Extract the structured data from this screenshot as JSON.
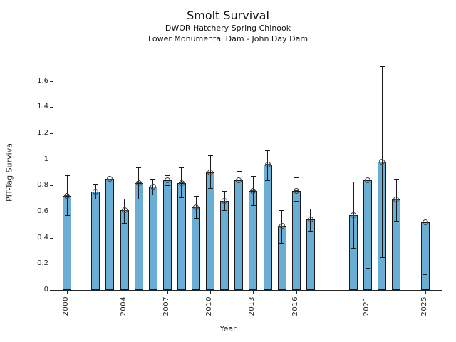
{
  "header": {
    "title": "Smolt Survival",
    "subtitle_line1": "DWOR Hatchery Spring Chinook",
    "subtitle_line2": "Lower Monumental Dam - John Day Dam"
  },
  "chart_data": {
    "type": "bar",
    "title": "Smolt Survival",
    "subtitle": [
      "DWOR Hatchery Spring Chinook",
      "Lower Monumental Dam - John Day Dam"
    ],
    "xlabel": "Year",
    "ylabel": "PIT-Tag Survival",
    "legend": "none",
    "grid": false,
    "bar_color": "#6AAED6",
    "bar_edge_color": "#1a1a1a",
    "error_bar_color": "#1a1a1a",
    "marker": "circled-plus",
    "xlim": [
      1999.05,
      2026.16
    ],
    "ylim": [
      0,
      1.81
    ],
    "yticks": [
      0,
      0.2,
      0.4,
      0.6,
      0.8,
      1,
      1.2,
      1.4,
      1.6
    ],
    "ytick_labels": [
      "0",
      "0.2",
      "0.4",
      "0.6",
      "0.8",
      "1",
      "1.2",
      "1.4",
      "1.6"
    ],
    "xticks": [
      2000,
      2004,
      2007,
      2010,
      2013,
      2016,
      2021,
      2025
    ],
    "xtick_labels": [
      "2000",
      "2004",
      "2007",
      "2010",
      "2013",
      "2016",
      "2021",
      "2025"
    ],
    "points": [
      {
        "year": 2000,
        "value": 0.72,
        "err_low": 0.57,
        "err_high": 0.88
      },
      {
        "year": 2002,
        "value": 0.75,
        "err_low": 0.7,
        "err_high": 0.81
      },
      {
        "year": 2003,
        "value": 0.85,
        "err_low": 0.79,
        "err_high": 0.92
      },
      {
        "year": 2004,
        "value": 0.61,
        "err_low": 0.51,
        "err_high": 0.7
      },
      {
        "year": 2005,
        "value": 0.82,
        "err_low": 0.7,
        "err_high": 0.94
      },
      {
        "year": 2006,
        "value": 0.79,
        "err_low": 0.73,
        "err_high": 0.85
      },
      {
        "year": 2007,
        "value": 0.84,
        "err_low": 0.8,
        "err_high": 0.88
      },
      {
        "year": 2008,
        "value": 0.82,
        "err_low": 0.71,
        "err_high": 0.94
      },
      {
        "year": 2009,
        "value": 0.63,
        "err_low": 0.55,
        "err_high": 0.72
      },
      {
        "year": 2010,
        "value": 0.9,
        "err_low": 0.78,
        "err_high": 1.03
      },
      {
        "year": 2011,
        "value": 0.68,
        "err_low": 0.61,
        "err_high": 0.76
      },
      {
        "year": 2012,
        "value": 0.84,
        "err_low": 0.77,
        "err_high": 0.91
      },
      {
        "year": 2013,
        "value": 0.76,
        "err_low": 0.65,
        "err_high": 0.87
      },
      {
        "year": 2014,
        "value": 0.96,
        "err_low": 0.84,
        "err_high": 1.07
      },
      {
        "year": 2015,
        "value": 0.49,
        "err_low": 0.36,
        "err_high": 0.61
      },
      {
        "year": 2016,
        "value": 0.76,
        "err_low": 0.68,
        "err_high": 0.86
      },
      {
        "year": 2017,
        "value": 0.54,
        "err_low": 0.45,
        "err_high": 0.62
      },
      {
        "year": 2020,
        "value": 0.57,
        "err_low": 0.32,
        "err_high": 0.83
      },
      {
        "year": 2021,
        "value": 0.84,
        "err_low": 0.17,
        "err_high": 1.51
      },
      {
        "year": 2022,
        "value": 0.98,
        "err_low": 0.25,
        "err_high": 1.71
      },
      {
        "year": 2023,
        "value": 0.69,
        "err_low": 0.53,
        "err_high": 0.85
      },
      {
        "year": 2025,
        "value": 0.52,
        "err_low": 0.12,
        "err_high": 0.92
      }
    ]
  }
}
